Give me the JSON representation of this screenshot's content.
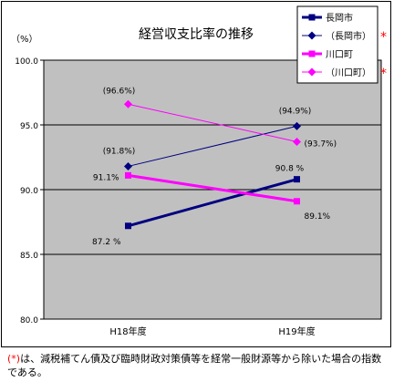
{
  "chart_data": {
    "type": "line",
    "title": "経営収支比率の推移",
    "ylabel": "（%）",
    "ylim": [
      80,
      100
    ],
    "yticks": [
      "100.0",
      "95.0",
      "90.0",
      "85.0",
      "80.0"
    ],
    "yticks_values": [
      100,
      95,
      90,
      85,
      80
    ],
    "categories": [
      "H18年度",
      "H19年度"
    ],
    "grid": true,
    "legend_position": "top-right",
    "series": [
      {
        "name": "長岡市",
        "marker": "square",
        "color": "#000080",
        "values": [
          87.2,
          90.8
        ],
        "labels": [
          "87.2 %",
          "90.8 %"
        ],
        "star": false
      },
      {
        "name": "（長岡市）",
        "marker": "diamond",
        "color": "#000080",
        "values": [
          91.8,
          94.9
        ],
        "labels": [
          "(91.8%)",
          "(94.9%)"
        ],
        "star": true
      },
      {
        "name": "川口町",
        "marker": "square",
        "color": "#ff00ff",
        "values": [
          91.1,
          89.1
        ],
        "labels": [
          "91.1%",
          "89.1%"
        ],
        "star": false
      },
      {
        "name": "（川口町）",
        "marker": "diamond",
        "color": "#ff00ff",
        "values": [
          96.6,
          93.7
        ],
        "labels": [
          "(96.6%)",
          "(93.7%)"
        ],
        "star": true
      }
    ],
    "star_mark": "*"
  },
  "footnote": {
    "marker": "(*)",
    "text": "は、減税補てん債及び臨時財政対策債等を経常一般財源等から除いた場合の指数である。"
  },
  "colors": {
    "plot_bg": "#c0c0c0",
    "star": "#ff0000"
  }
}
